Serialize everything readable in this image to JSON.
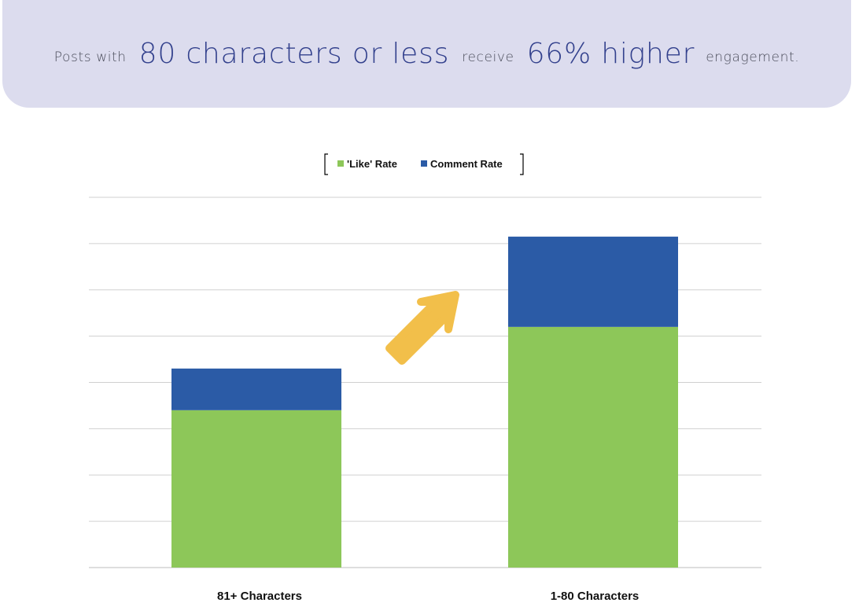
{
  "headline": {
    "part1": "Posts with",
    "part2": "80 characters or less",
    "part3": "receive",
    "part4": "66% higher",
    "part5": "engagement."
  },
  "colors": {
    "banner_bg": "#dcdcee",
    "headline_accent": "#33418d",
    "like": "#8dc759",
    "comment": "#2b5ba6",
    "arrow": "#f2bf4a",
    "grid": "#d0d0d0"
  },
  "chart_data": {
    "type": "bar",
    "stacked": true,
    "categories": [
      "81+ Characters",
      "1-80 Characters"
    ],
    "series": [
      {
        "name": "'Like' Rate",
        "values": [
          3.4,
          5.2
        ]
      },
      {
        "name": "Comment Rate",
        "values": [
          0.9,
          1.95
        ]
      }
    ],
    "ylim": [
      0,
      8
    ],
    "yticks": [
      0,
      1,
      2,
      3,
      4,
      5,
      6,
      7,
      8
    ],
    "ytick_labels_visible": false,
    "grid": true,
    "legend": "top-center",
    "annotation": "up-right-arrow-icon"
  }
}
